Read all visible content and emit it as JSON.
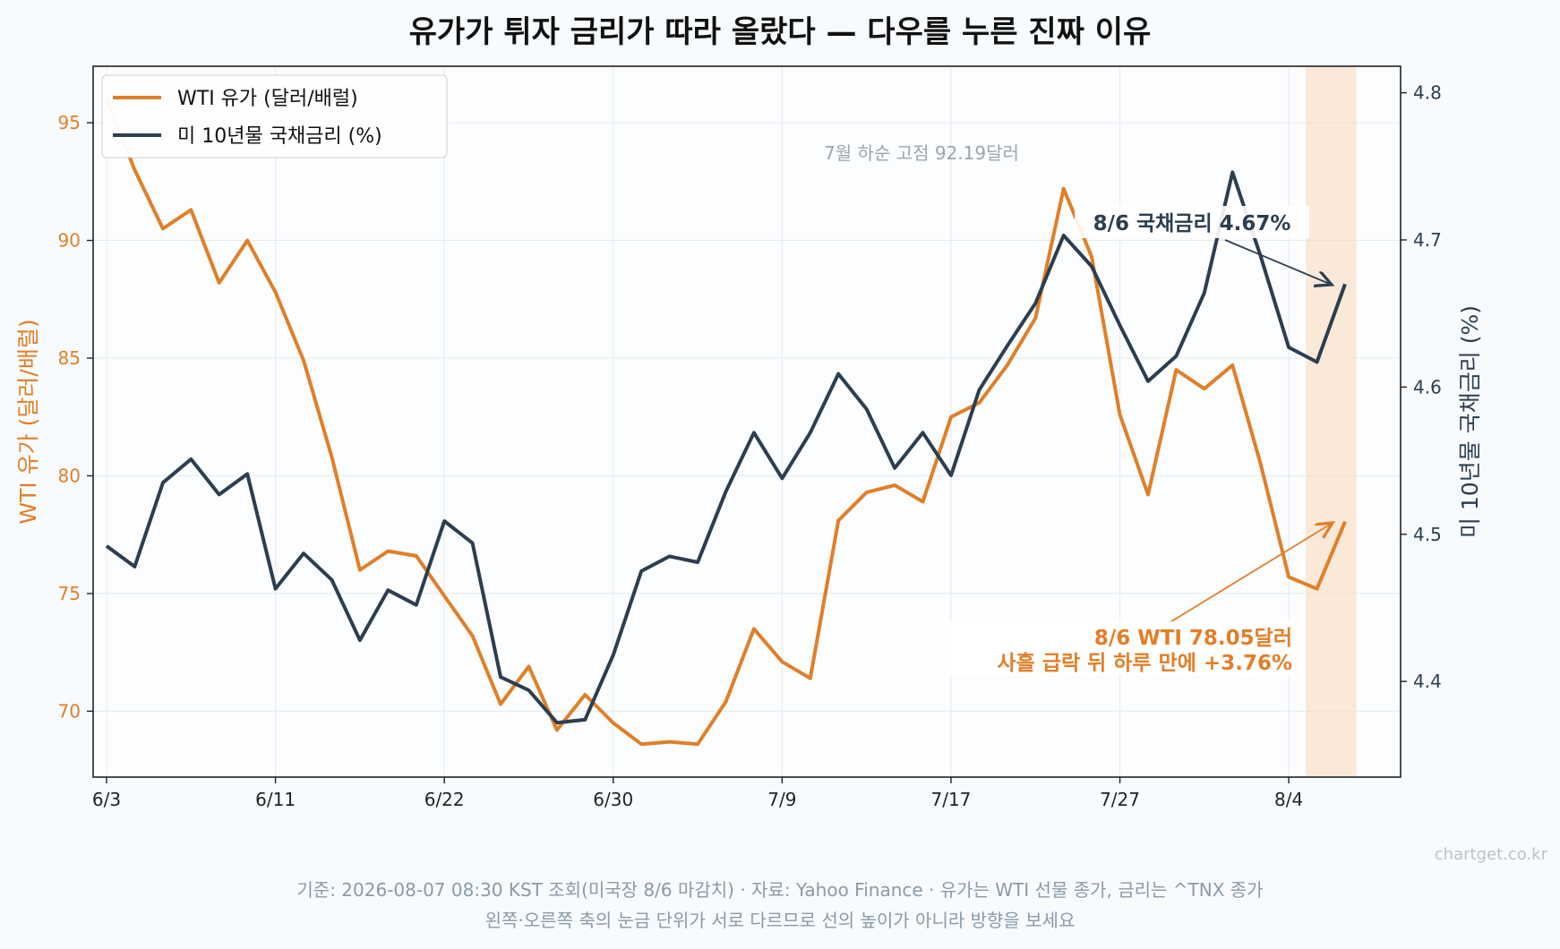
{
  "title": "유가가 튀자 금리가 따라 올랐다 — 다우를 누른 진짜 이유",
  "footer": {
    "line1": "기준: 2026-08-07 08:30 KST 조회(미국장 8/6 마감치) · 자료: Yahoo Finance · 유가는 WTI 선물 종가, 금리는 ^TNX 종가",
    "line2": "왼쪽·오른쪽 축의 눈금 단위가 서로 다르므로 선의 높이가 아니라 방향을 보세요",
    "watermark": "chartget.co.kr"
  },
  "colors": {
    "oil": "#e07f28",
    "rate": "#2c3e50",
    "highlight": "#f8dcc0"
  },
  "chart_data": {
    "type": "line",
    "x_tick_labels": [
      "6/3",
      "6/11",
      "6/22",
      "6/30",
      "7/9",
      "7/17",
      "7/27",
      "8/4"
    ],
    "left_axis": {
      "label": "WTI 유가 (달러/배럴)",
      "ticks": [
        70,
        75,
        80,
        85,
        90,
        95
      ],
      "range": [
        67.2,
        97.4
      ]
    },
    "right_axis": {
      "label": "미 10년물 국채금리 (%)",
      "ticks": [
        4.4,
        4.5,
        4.6,
        4.7,
        4.8
      ],
      "range": [
        4.335,
        4.818
      ]
    },
    "grid": true,
    "legend_position": "top-left",
    "highlight_last_day": true,
    "series": [
      {
        "name": "WTI 유가 (달러/배럴)",
        "axis": "left",
        "values": [
          96.0,
          93.0,
          90.5,
          91.3,
          88.2,
          90.0,
          87.8,
          84.9,
          80.8,
          76.0,
          76.8,
          76.6,
          74.9,
          73.2,
          70.3,
          71.9,
          69.2,
          70.7,
          69.5,
          68.6,
          68.7,
          68.6,
          70.4,
          73.5,
          72.1,
          71.4,
          78.1,
          79.3,
          79.6,
          78.9,
          82.5,
          83.1,
          84.7,
          86.7,
          92.2,
          89.3,
          82.6,
          79.2,
          84.5,
          83.7,
          84.7,
          80.5,
          75.7,
          75.2,
          78.05
        ]
      },
      {
        "name": "미 10년물 국채금리 (%)",
        "axis": "right",
        "values": [
          4.492,
          4.478,
          4.535,
          4.551,
          4.527,
          4.541,
          4.463,
          4.487,
          4.469,
          4.428,
          4.462,
          4.452,
          4.509,
          4.494,
          4.403,
          4.394,
          4.372,
          4.374,
          4.418,
          4.475,
          4.485,
          4.481,
          4.529,
          4.569,
          4.538,
          4.569,
          4.609,
          4.585,
          4.545,
          4.569,
          4.54,
          4.598,
          4.628,
          4.657,
          4.703,
          4.682,
          4.642,
          4.604,
          4.621,
          4.664,
          4.746,
          4.689,
          4.627,
          4.617,
          4.67
        ]
      }
    ],
    "annotations": {
      "peak_note": "7월 하순 고점 92.19달러",
      "rate_note": "8/6 국채금리 4.67%",
      "oil_note_line1": "8/6 WTI 78.05달러",
      "oil_note_line2": "사흘 급락 뒤 하루 만에 +3.76%"
    }
  }
}
